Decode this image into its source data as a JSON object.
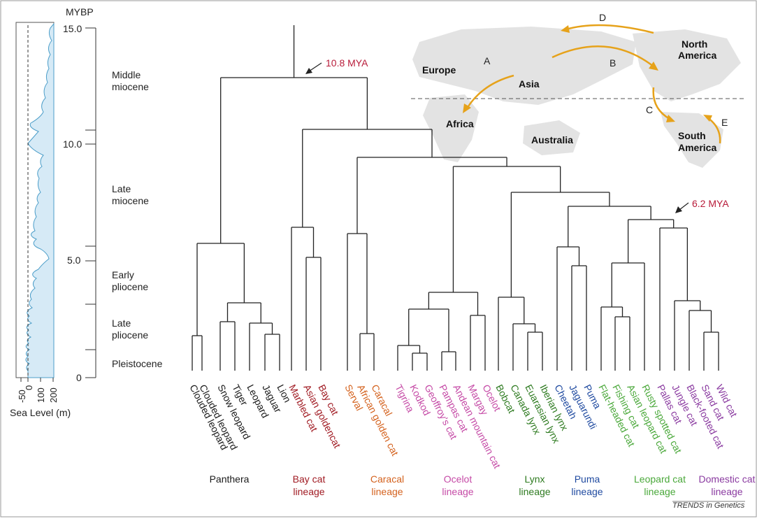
{
  "time_axis": {
    "unit_label": "MYBP",
    "ticks": [
      "15.0",
      "10.0",
      "5.0",
      "0"
    ],
    "epochs": [
      "Middle miocene",
      "Late miocene",
      "Early pliocene",
      "Late pliocene",
      "Pleistocene"
    ]
  },
  "sea_level": {
    "xlabel": "Sea Level (m)",
    "ticks": [
      "-50",
      "0",
      "100",
      "200"
    ]
  },
  "annotations": {
    "root_age": "10.8 MYA",
    "inner_age": "6.2 MYA"
  },
  "map": {
    "labels": [
      "Europe",
      "Asia",
      "North America",
      "Africa",
      "Australia",
      "South America"
    ],
    "routes": [
      "A",
      "B",
      "C",
      "D",
      "E"
    ],
    "route_color": "#e6a21a"
  },
  "species": [
    "Clouded leopard",
    "Clouded leopard",
    "Snow leopard",
    "Tiger",
    "Leopard",
    "Jaguar",
    "Lion",
    "Marbled cat",
    "Asian goldencat",
    "Bay cat",
    "Serval",
    "African golden cat",
    "Caracal",
    "Tigrina",
    "Kodkod",
    "Geoffroy's cat",
    "Pampas cat",
    "Andean mountain cat",
    "Margay",
    "Ocelot",
    "Bobcat",
    "Canada lynx",
    "Euarasian lynx",
    "Iberian lynx",
    "Cheetah",
    "Jaguarundi",
    "Puma",
    "Flat-headed cat",
    "Fishing cat",
    "Asian leopard cat",
    "Rusty spotted cat",
    "Pallas cat",
    "Jungle cat",
    "Black-footed cat",
    "Sand cat",
    "Wild cat"
  ],
  "lineages": [
    {
      "name": "Panthera",
      "color": "#1a1a1a"
    },
    {
      "name": "Bay cat lineage",
      "color": "#a01a22"
    },
    {
      "name": "Caracal lineage",
      "color": "#d4621e"
    },
    {
      "name": "Ocelot lineage",
      "color": "#c54aa6"
    },
    {
      "name": "Lynx lineage",
      "color": "#2d7a1f"
    },
    {
      "name": "Puma lineage",
      "color": "#1f4aa0"
    },
    {
      "name": "Leopard cat lineage",
      "color": "#4aa83a"
    },
    {
      "name": "Domestic cat lineage",
      "color": "#8a3aa0"
    }
  ],
  "credit": "TRENDS in Genetics"
}
